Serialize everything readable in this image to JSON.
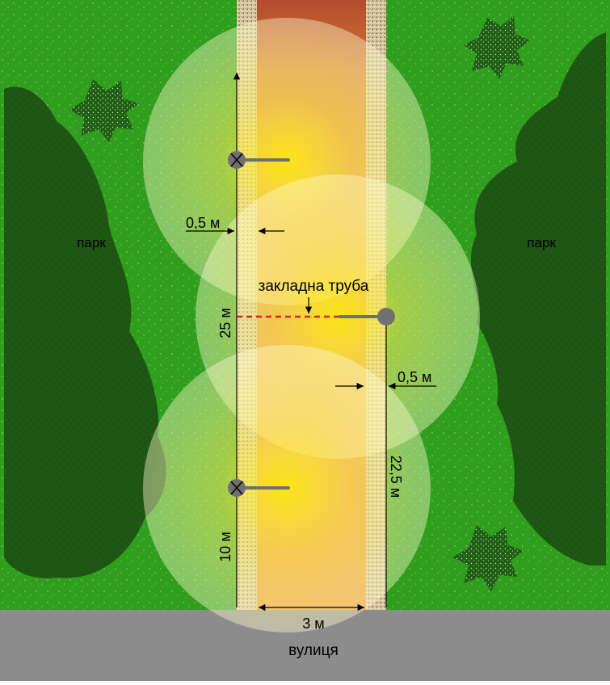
{
  "labels": {
    "park_left": "парк",
    "park_right": "парк",
    "street": "вулиця",
    "conduit": "закладна труба",
    "offset_left": "0,5 м",
    "offset_right": "0,5 м",
    "spacing_left": "25 м",
    "spacing_right": "22,5 м",
    "distance_bottom": "10 м",
    "path_width": "3 м"
  },
  "colors": {
    "grass": "#2f9e1c",
    "tree_dark": "#1e5512",
    "path_base": "#e0902f",
    "path_top": "#b2502e",
    "gravel": "#d8c8a2",
    "street": "#8c8c8c",
    "lamp": "#707070",
    "light_glow": "#fff13a",
    "conduit": "#e02020"
  },
  "icons": {
    "lamp": "street-lamp-icon",
    "tree": "tree-icon",
    "shrub": "shrub-icon"
  }
}
